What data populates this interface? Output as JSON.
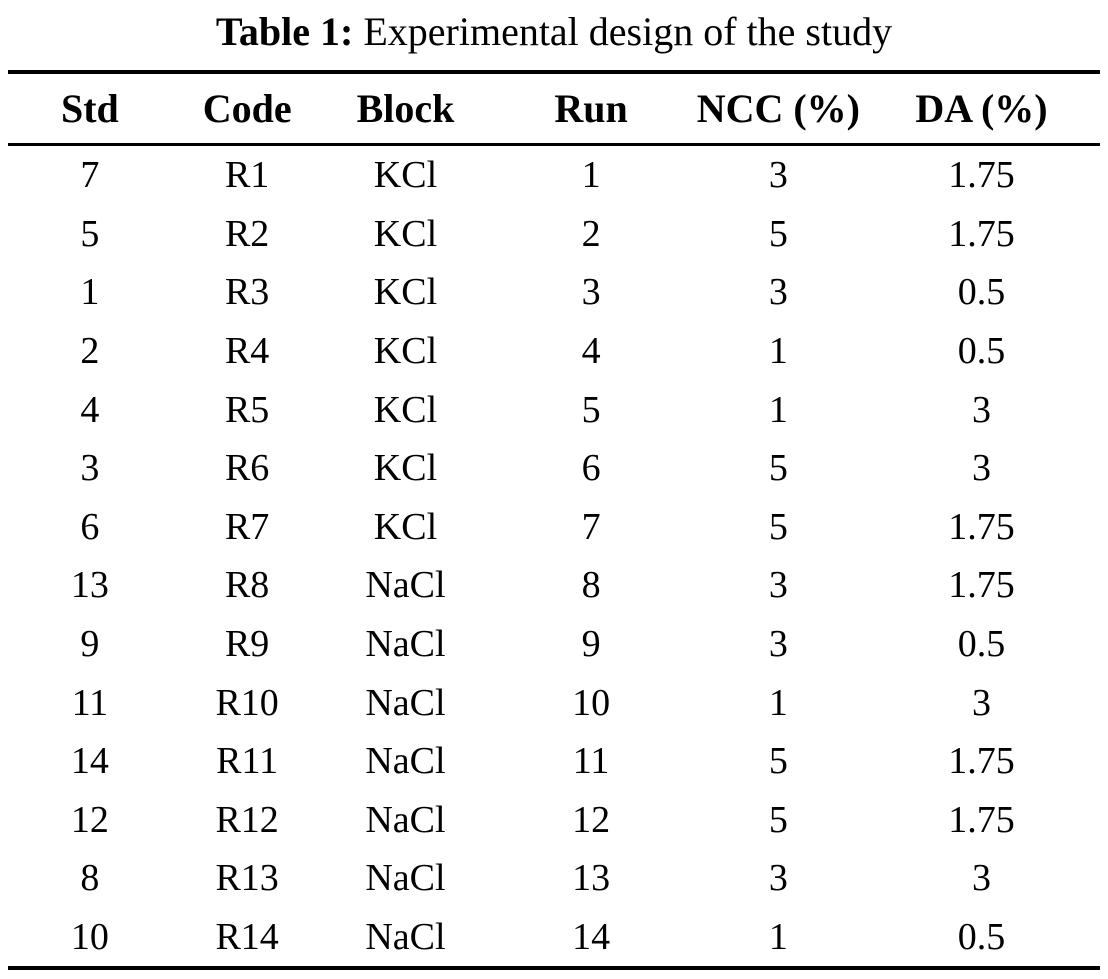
{
  "caption": {
    "label": "Table 1:",
    "text": "Experimental design of the study"
  },
  "table": {
    "headers": [
      "Std",
      "Code",
      "Block",
      "Run",
      "NCC (%)",
      "DA (%)"
    ],
    "rows": [
      [
        "7",
        "R1",
        "KCl",
        "1",
        "3",
        "1.75"
      ],
      [
        "5",
        "R2",
        "KCl",
        "2",
        "5",
        "1.75"
      ],
      [
        "1",
        "R3",
        "KCl",
        "3",
        "3",
        "0.5"
      ],
      [
        "2",
        "R4",
        "KCl",
        "4",
        "1",
        "0.5"
      ],
      [
        "4",
        "R5",
        "KCl",
        "5",
        "1",
        "3"
      ],
      [
        "3",
        "R6",
        "KCl",
        "6",
        "5",
        "3"
      ],
      [
        "6",
        "R7",
        "KCl",
        "7",
        "5",
        "1.75"
      ],
      [
        "13",
        "R8",
        "NaCl",
        "8",
        "3",
        "1.75"
      ],
      [
        "9",
        "R9",
        "NaCl",
        "9",
        "3",
        "0.5"
      ],
      [
        "11",
        "R10",
        "NaCl",
        "10",
        "1",
        "3"
      ],
      [
        "14",
        "R11",
        "NaCl",
        "11",
        "5",
        "1.75"
      ],
      [
        "12",
        "R12",
        "NaCl",
        "12",
        "5",
        "1.75"
      ],
      [
        "8",
        "R13",
        "NaCl",
        "13",
        "3",
        "3"
      ],
      [
        "10",
        "R14",
        "NaCl",
        "14",
        "1",
        "0.5"
      ]
    ]
  },
  "colors": {
    "text": "#000000",
    "background": "#ffffff",
    "rule": "#000000"
  }
}
